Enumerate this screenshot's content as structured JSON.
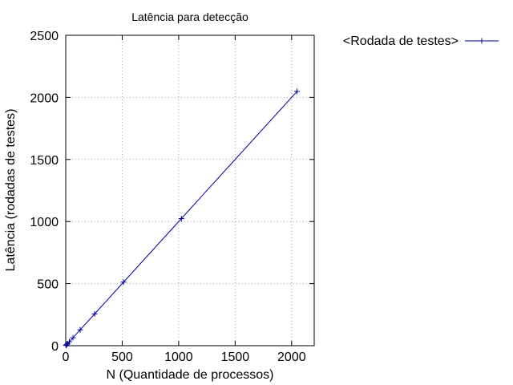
{
  "chart_data": {
    "type": "line",
    "title": "Latência para detecção",
    "xlabel": "N (Quantidade de processos)",
    "ylabel": "Latência (rodadas de testes)",
    "xlim": [
      0,
      2200
    ],
    "ylim": [
      0,
      2500
    ],
    "xticks": [
      0,
      500,
      1000,
      1500,
      2000
    ],
    "yticks": [
      0,
      500,
      1000,
      1500,
      2000,
      2500
    ],
    "grid": true,
    "legend_position": "top-right",
    "series": [
      {
        "name": "<Rodada de testes>",
        "color": "#0000a0",
        "marker": "plus",
        "x": [
          2,
          4,
          8,
          16,
          32,
          64,
          128,
          256,
          512,
          1024,
          2048
        ],
        "y": [
          2,
          4,
          8,
          16,
          32,
          64,
          128,
          256,
          512,
          1024,
          2048
        ]
      }
    ]
  }
}
